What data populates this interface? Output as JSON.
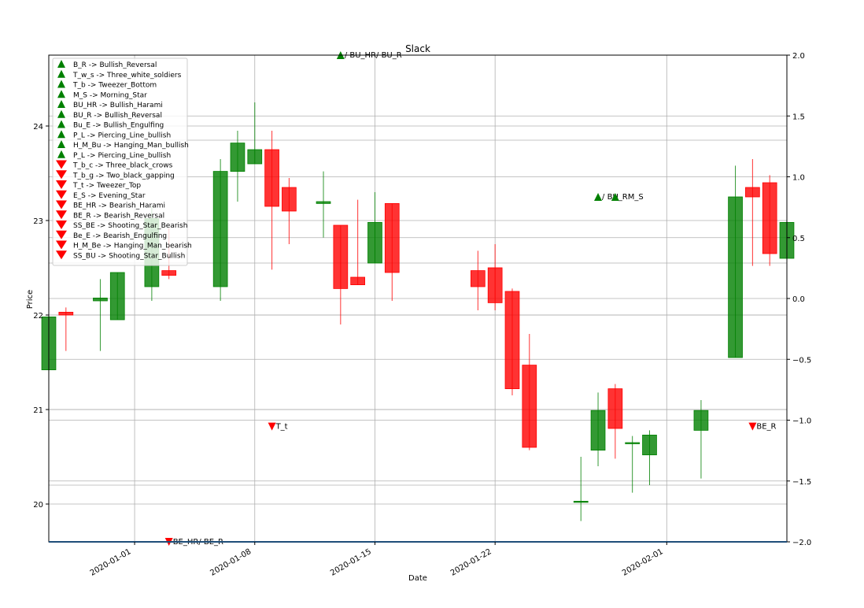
{
  "chart_data": {
    "type": "candlestick",
    "title": "Slack",
    "xlabel": "Date",
    "ylabel": "Price",
    "x_ticks": [
      "2020-01-01",
      "2020-01-08",
      "2020-01-15",
      "2020-01-22",
      "2020-02-01"
    ],
    "y_ticks": [
      "20",
      "21",
      "22",
      "23",
      "24"
    ],
    "y2_ticks": [
      "2.0",
      "1.5",
      "1.0",
      "0.5",
      "0.0",
      "−0.5",
      "−1.0",
      "−1.5",
      "−2.0"
    ],
    "ylim": [
      19.6,
      24.75
    ],
    "y2lim": [
      -2.0,
      2.0
    ],
    "grid": true,
    "legend_position": "upper-left",
    "colors": {
      "up": "#008000",
      "down": "#ff0000",
      "bullish_marker": "#008000",
      "bearish_marker": "#ff0000",
      "baseline": "#1f4e79"
    },
    "candles": [
      {
        "date": "2019-12-27",
        "open": 21.42,
        "high": 22.02,
        "low": 21.32,
        "close": 21.98
      },
      {
        "date": "2019-12-28",
        "open": 22.03,
        "high": 22.08,
        "low": 21.62,
        "close": 22.0
      },
      {
        "date": "2019-12-30",
        "open": 22.15,
        "high": 22.38,
        "low": 21.62,
        "close": 22.18
      },
      {
        "date": "2019-12-31",
        "open": 21.95,
        "high": 22.45,
        "low": 21.95,
        "close": 22.45
      },
      {
        "date": "2020-01-02",
        "open": 22.3,
        "high": 23.15,
        "low": 22.15,
        "close": 23.02
      },
      {
        "date": "2020-01-03",
        "open": 22.47,
        "high": 22.92,
        "low": 22.38,
        "close": 22.42
      },
      {
        "date": "2020-01-06",
        "open": 22.3,
        "high": 23.65,
        "low": 22.15,
        "close": 23.52
      },
      {
        "date": "2020-01-07",
        "open": 23.52,
        "high": 23.95,
        "low": 23.2,
        "close": 23.82
      },
      {
        "date": "2020-01-08",
        "open": 23.6,
        "high": 24.25,
        "low": 23.6,
        "close": 23.75
      },
      {
        "date": "2020-01-09",
        "open": 23.75,
        "high": 23.95,
        "low": 22.48,
        "close": 23.15
      },
      {
        "date": "2020-01-10",
        "open": 23.35,
        "high": 23.45,
        "low": 22.75,
        "close": 23.1
      },
      {
        "date": "2020-01-12",
        "open": 23.18,
        "high": 23.52,
        "low": 22.82,
        "close": 23.2
      },
      {
        "date": "2020-01-13",
        "open": 22.95,
        "high": 22.95,
        "low": 21.9,
        "close": 22.28
      },
      {
        "date": "2020-01-14",
        "open": 22.4,
        "high": 23.22,
        "low": 22.32,
        "close": 22.32
      },
      {
        "date": "2020-01-15",
        "open": 22.55,
        "high": 23.3,
        "low": 22.55,
        "close": 22.98
      },
      {
        "date": "2020-01-16",
        "open": 23.18,
        "high": 23.18,
        "low": 22.15,
        "close": 22.45
      },
      {
        "date": "2020-01-21",
        "open": 22.47,
        "high": 22.68,
        "low": 22.05,
        "close": 22.3
      },
      {
        "date": "2020-01-22",
        "open": 22.5,
        "high": 22.75,
        "low": 22.05,
        "close": 22.13
      },
      {
        "date": "2020-01-23",
        "open": 22.25,
        "high": 22.28,
        "low": 21.15,
        "close": 21.22
      },
      {
        "date": "2020-01-24",
        "open": 21.47,
        "high": 21.8,
        "low": 20.57,
        "close": 20.6
      },
      {
        "date": "2020-01-27",
        "open": 20.03,
        "high": 20.5,
        "low": 19.82,
        "close": 20.03
      },
      {
        "date": "2020-01-28",
        "open": 20.57,
        "high": 21.18,
        "low": 20.4,
        "close": 20.99
      },
      {
        "date": "2020-01-29",
        "open": 21.22,
        "high": 21.27,
        "low": 20.48,
        "close": 20.8
      },
      {
        "date": "2020-01-30",
        "open": 20.65,
        "high": 20.72,
        "low": 20.12,
        "close": 20.65
      },
      {
        "date": "2020-01-31",
        "open": 20.52,
        "high": 20.78,
        "low": 20.2,
        "close": 20.73
      },
      {
        "date": "2020-02-03",
        "open": 20.78,
        "high": 21.1,
        "low": 20.27,
        "close": 20.99
      },
      {
        "date": "2020-02-05",
        "open": 21.55,
        "high": 23.58,
        "low": 21.55,
        "close": 23.25
      },
      {
        "date": "2020-02-06",
        "open": 23.35,
        "high": 23.65,
        "low": 22.52,
        "close": 23.25
      },
      {
        "date": "2020-02-07",
        "open": 23.4,
        "high": 23.48,
        "low": 22.52,
        "close": 22.65
      },
      {
        "date": "2020-02-08",
        "open": 22.6,
        "high": 23.05,
        "low": 22.52,
        "close": 22.98
      }
    ],
    "signals": [
      {
        "date": "2020-01-03",
        "label": "BE_HR/ BE_R",
        "direction": "bearish",
        "y": 19.6
      },
      {
        "date": "2020-01-09",
        "label": "T_t",
        "direction": "bearish",
        "y": 20.82
      },
      {
        "date": "2020-01-13",
        "label": "/ BU_HR/ BU_R",
        "direction": "bullish",
        "y": 24.75
      },
      {
        "date": "2020-01-28",
        "label": "/ BU_RM_S",
        "direction": "bullish",
        "y": 23.25
      },
      {
        "date": "2020-01-29",
        "label": "",
        "direction": "bullish",
        "y": 23.25
      },
      {
        "date": "2020-02-06",
        "label": "BE_R",
        "direction": "bearish",
        "y": 20.82
      }
    ],
    "hlines": [
      20.2,
      21.0,
      22.0,
      22.55,
      23.85
    ],
    "legend": [
      {
        "label": "B_R -> Bullish_Reversal",
        "marker": "bullish"
      },
      {
        "label": "T_w_s -> Three_white_soldiers",
        "marker": "bullish"
      },
      {
        "label": "T_b -> Tweezer_Bottom",
        "marker": "bullish"
      },
      {
        "label": "M_S -> Morning_Star",
        "marker": "bullish"
      },
      {
        "label": "BU_HR -> Bullish_Harami",
        "marker": "bullish"
      },
      {
        "label": "BU_R -> Bullish_Reversal",
        "marker": "bullish"
      },
      {
        "label": "Bu_E -> Bullish_Engulfing",
        "marker": "bullish"
      },
      {
        "label": "P_L -> Piercing_Line_bullish",
        "marker": "bullish"
      },
      {
        "label": "H_M_Bu -> Hanging_Man_bullish",
        "marker": "bullish"
      },
      {
        "label": "P_L -> Piercing_Line_bullish",
        "marker": "bullish"
      },
      {
        "label": "T_b_c -> Three_black_crows",
        "marker": "bearish"
      },
      {
        "label": "T_b_g -> Two_black_gapping",
        "marker": "bearish"
      },
      {
        "label": "T_t -> Tweezer_Top",
        "marker": "bearish"
      },
      {
        "label": "E_S -> Evening_Star",
        "marker": "bearish"
      },
      {
        "label": "BE_HR -> Bearish_Harami",
        "marker": "bearish"
      },
      {
        "label": "BE_R -> Bearish_Reversal",
        "marker": "bearish"
      },
      {
        "label": "SS_BE -> Shooting_Star_Bearish",
        "marker": "bearish"
      },
      {
        "label": "Be_E -> Bearish_Engulfing",
        "marker": "bearish"
      },
      {
        "label": "H_M_Be -> Hanging_Man_bearish",
        "marker": "bearish"
      },
      {
        "label": "SS_BU -> Shooting_Star_Bullish",
        "marker": "bearish"
      }
    ]
  }
}
